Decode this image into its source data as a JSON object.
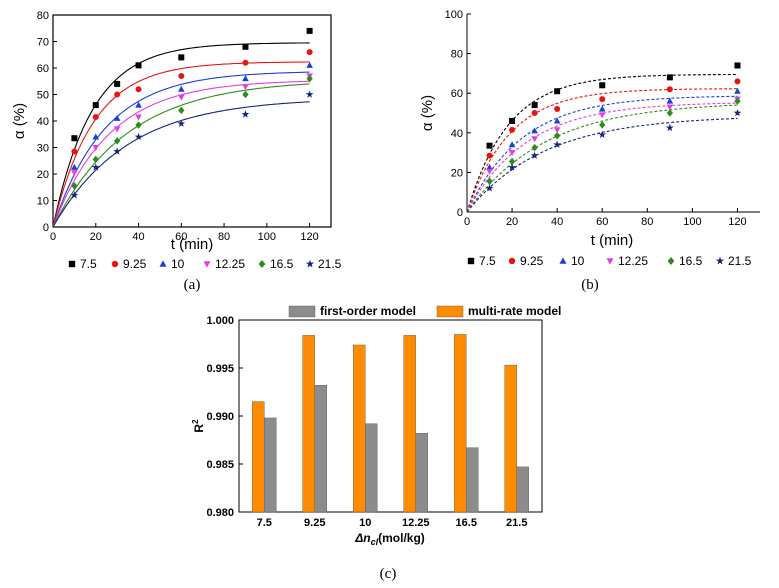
{
  "chart_data": [
    {
      "type": "scatter",
      "panel_label": "(a)",
      "xlabel": "t (min)",
      "ylabel": "α (%)",
      "xlim": [
        0,
        130
      ],
      "ylim": [
        0,
        80
      ],
      "xticks": [
        0,
        20,
        40,
        60,
        80,
        100,
        120
      ],
      "yticks": [
        0,
        10,
        20,
        30,
        40,
        50,
        60,
        70,
        80
      ],
      "grid": false,
      "legend_position": "bottom",
      "fit": "solid",
      "x": [
        0,
        10,
        20,
        30,
        40,
        60,
        90,
        120
      ],
      "series": [
        {
          "name": "7.5",
          "marker": "square",
          "color": "#000000",
          "values": [
            0,
            33.5,
            46,
            54,
            61,
            64,
            68,
            74
          ]
        },
        {
          "name": "9.25",
          "marker": "circle",
          "color": "#e8150f",
          "values": [
            0,
            28.5,
            41.5,
            50,
            52,
            57,
            62,
            66
          ]
        },
        {
          "name": "10",
          "marker": "triangle-up",
          "color": "#1a3fd6",
          "values": [
            0,
            22.5,
            34,
            41,
            46,
            52,
            56,
            61
          ]
        },
        {
          "name": "12.25",
          "marker": "triangle-down",
          "color": "#e63ce6",
          "values": [
            0,
            20.5,
            30,
            37,
            41.5,
            49,
            53,
            57
          ]
        },
        {
          "name": "16.5",
          "marker": "diamond",
          "color": "#2e8b1a",
          "values": [
            0,
            15.5,
            25.5,
            32.5,
            38.5,
            44,
            50,
            56
          ]
        },
        {
          "name": "21.5",
          "marker": "star",
          "color": "#16257a",
          "values": [
            0,
            12,
            22.5,
            28.5,
            34,
            39,
            42.5,
            50
          ]
        }
      ]
    },
    {
      "type": "scatter",
      "panel_label": "(b)",
      "xlabel": "t (min)",
      "ylabel": "α (%)",
      "xlim": [
        0,
        130
      ],
      "ylim": [
        0,
        100
      ],
      "xticks": [
        0,
        20,
        40,
        60,
        80,
        100,
        120
      ],
      "yticks": [
        0,
        20,
        40,
        60,
        80,
        100
      ],
      "grid": false,
      "legend_position": "bottom",
      "fit": "dashed",
      "x": [
        0,
        10,
        20,
        30,
        40,
        60,
        90,
        120
      ],
      "series": [
        {
          "name": "7.5",
          "marker": "square",
          "color": "#000000",
          "values": [
            0,
            33.5,
            46,
            54,
            61,
            64,
            68,
            74
          ]
        },
        {
          "name": "9.25",
          "marker": "circle",
          "color": "#e8150f",
          "values": [
            0,
            28.5,
            41.5,
            50,
            52,
            57,
            62,
            66
          ]
        },
        {
          "name": "10",
          "marker": "triangle-up",
          "color": "#1a3fd6",
          "values": [
            0,
            22.5,
            34,
            41,
            46,
            52,
            56,
            61
          ]
        },
        {
          "name": "12.25",
          "marker": "triangle-down",
          "color": "#e63ce6",
          "values": [
            0,
            20.5,
            30,
            37,
            41.5,
            49,
            53,
            57
          ]
        },
        {
          "name": "16.5",
          "marker": "diamond",
          "color": "#2e8b1a",
          "values": [
            0,
            15.5,
            25.5,
            32.5,
            38.5,
            44,
            50,
            56
          ]
        },
        {
          "name": "21.5",
          "marker": "star",
          "color": "#16257a",
          "values": [
            0,
            12,
            22.5,
            28.5,
            34,
            39,
            42.5,
            50
          ]
        }
      ]
    },
    {
      "type": "bar",
      "panel_label": "(c)",
      "xlabel": "Δn",
      "xlabel_subscript": "cl",
      "xlabel_unit": "(mol/kg)",
      "ylabel": "R",
      "ylabel_superscript": "2",
      "ylim": [
        0.98,
        1.0
      ],
      "yticks": [
        "0.980",
        "0.985",
        "0.990",
        "0.995",
        "1.000"
      ],
      "grid": false,
      "legend_position": "top",
      "categories": [
        "7.5",
        "9.25",
        "10",
        "12.25",
        "16.5",
        "21.5"
      ],
      "series": [
        {
          "name": "first-order model",
          "color": "#8c8c8c",
          "values": [
            0.9898,
            0.9932,
            0.9892,
            0.9882,
            0.9867,
            0.9847
          ]
        },
        {
          "name": "multi-rate model",
          "color": "#ff8c00",
          "values": [
            0.9915,
            0.9984,
            0.9974,
            0.9984,
            0.9985,
            0.9953
          ]
        }
      ]
    }
  ]
}
